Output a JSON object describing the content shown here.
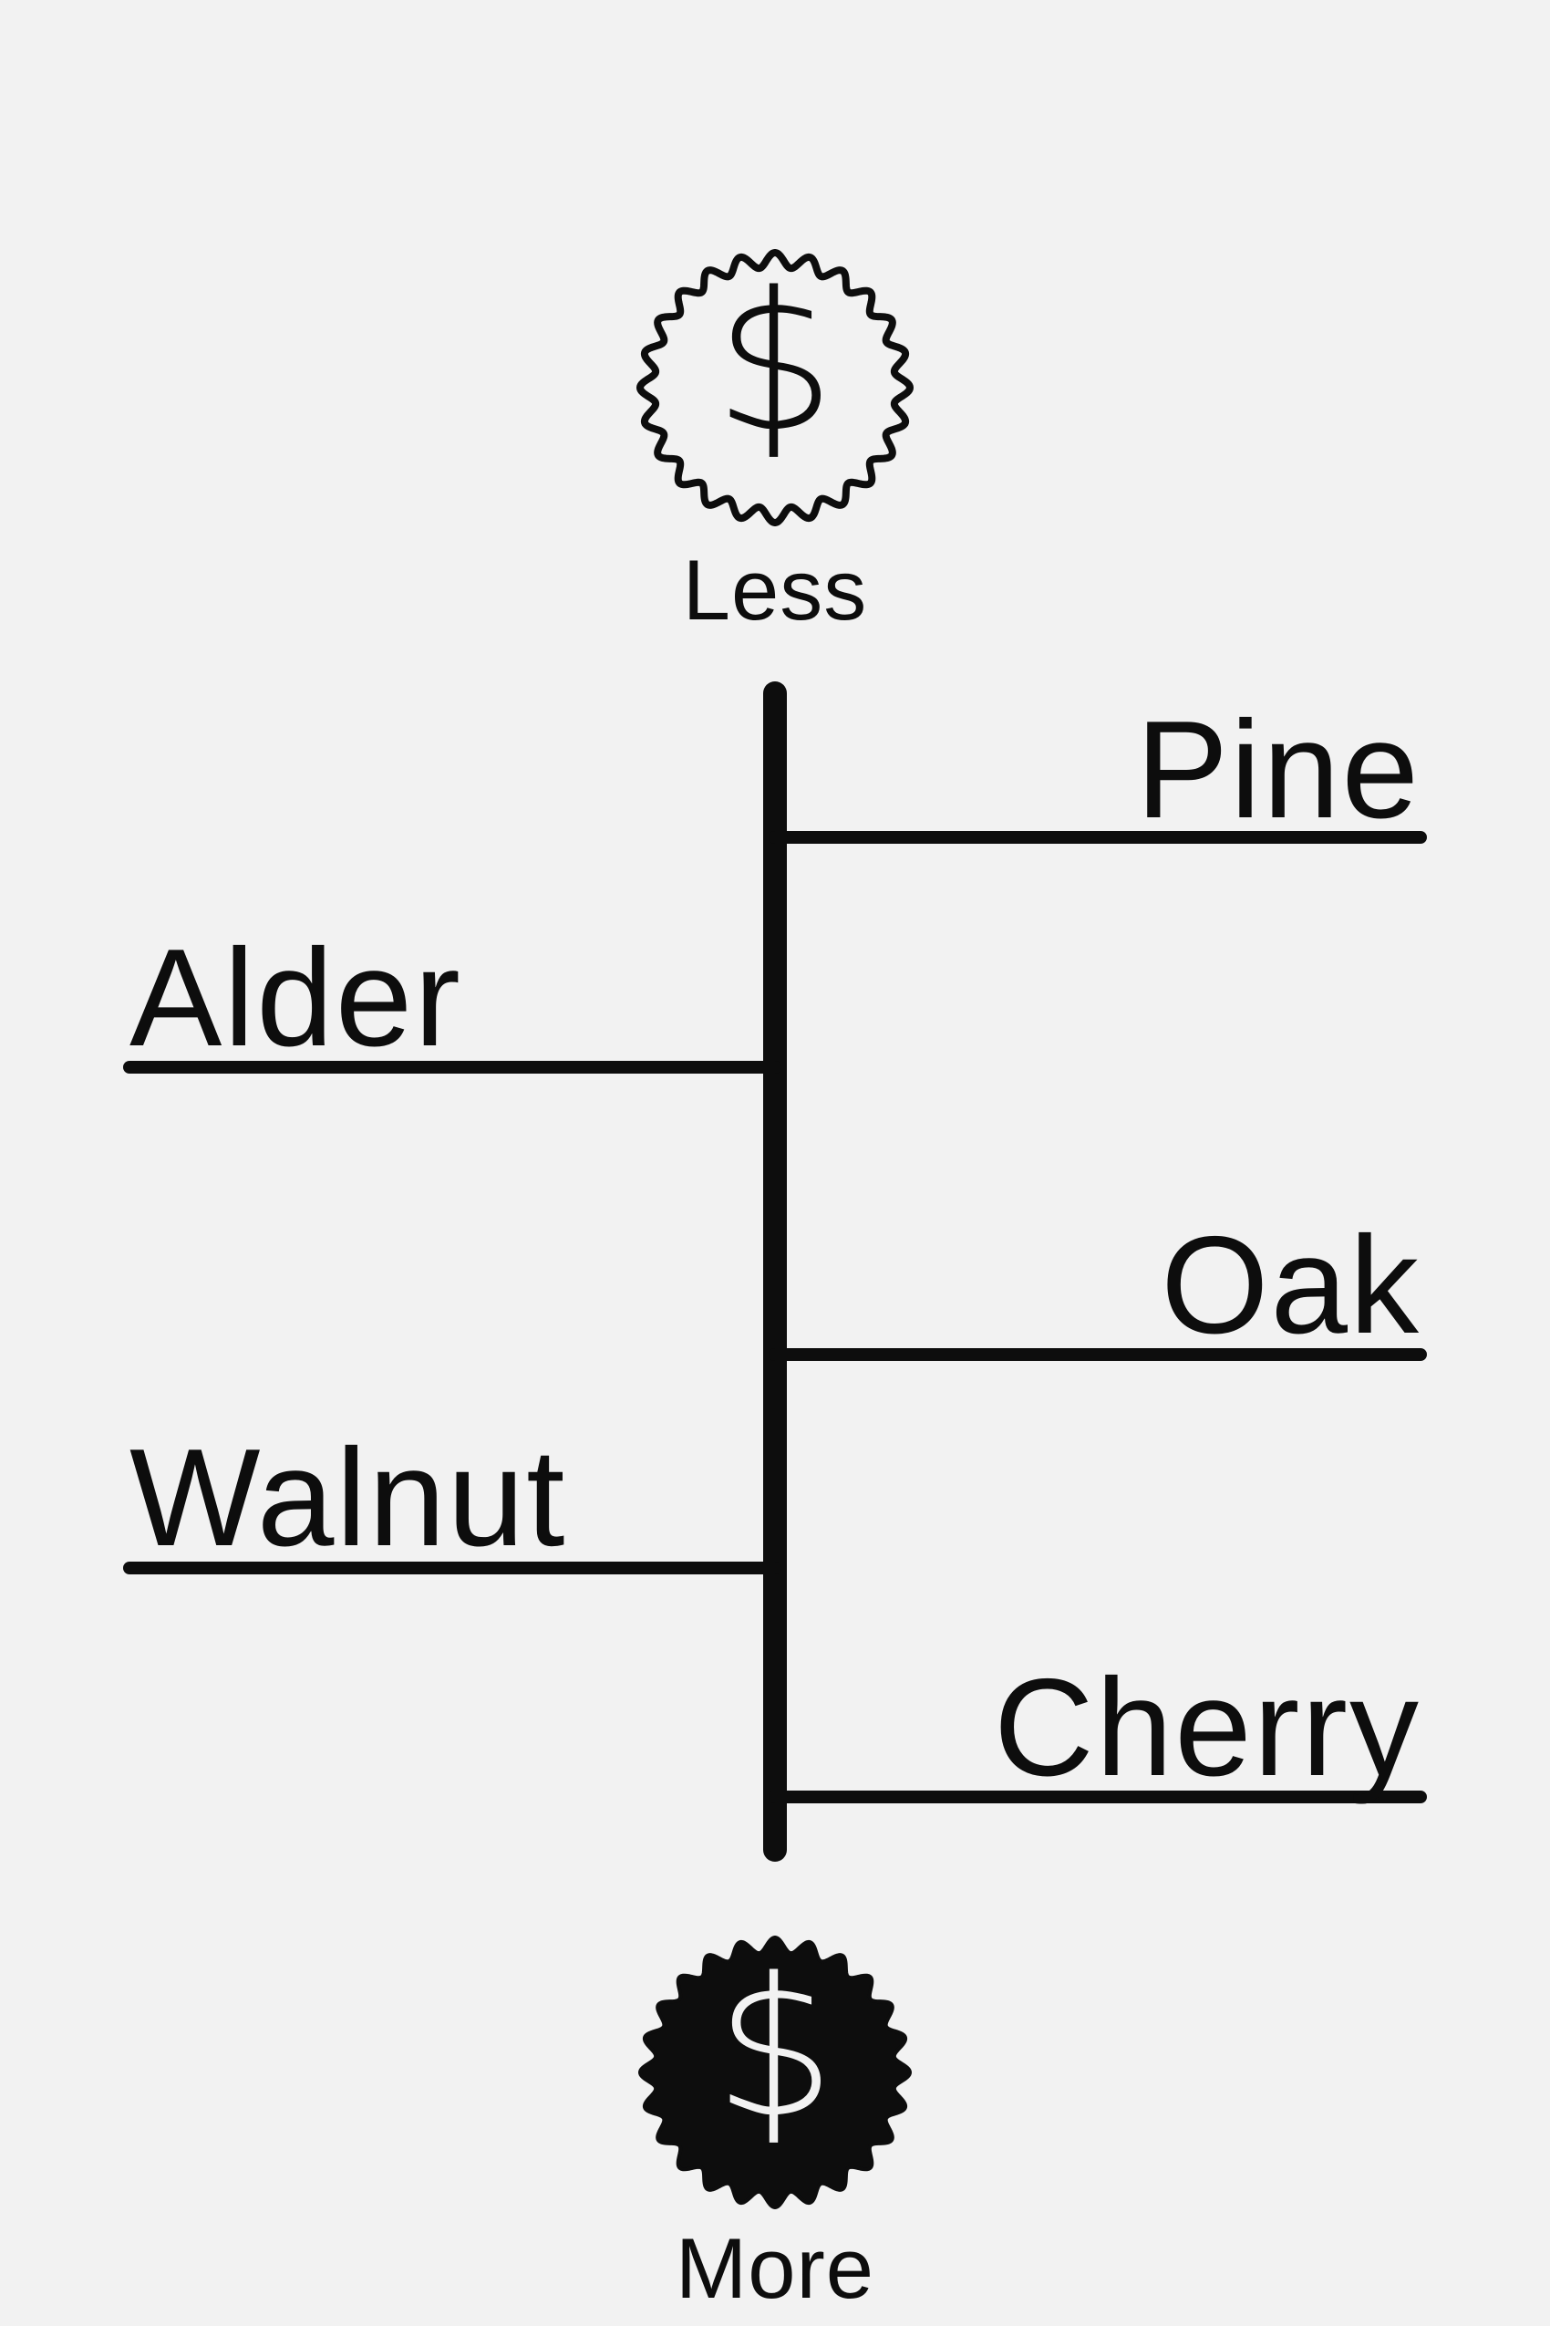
{
  "scale": {
    "top_label": "Less",
    "bottom_label": "More",
    "top_icon": "dollar-badge-outline-icon",
    "bottom_icon": "dollar-badge-filled-icon"
  },
  "woods": [
    {
      "name": "Pine",
      "side": "right",
      "rank": 1
    },
    {
      "name": "Alder",
      "side": "left",
      "rank": 2
    },
    {
      "name": "Oak",
      "side": "right",
      "rank": 3
    },
    {
      "name": "Walnut",
      "side": "left",
      "rank": 4
    },
    {
      "name": "Cherry",
      "side": "right",
      "rank": 5
    }
  ],
  "colors": {
    "background": "#f2f2f2",
    "ink": "#0d0d0d"
  }
}
